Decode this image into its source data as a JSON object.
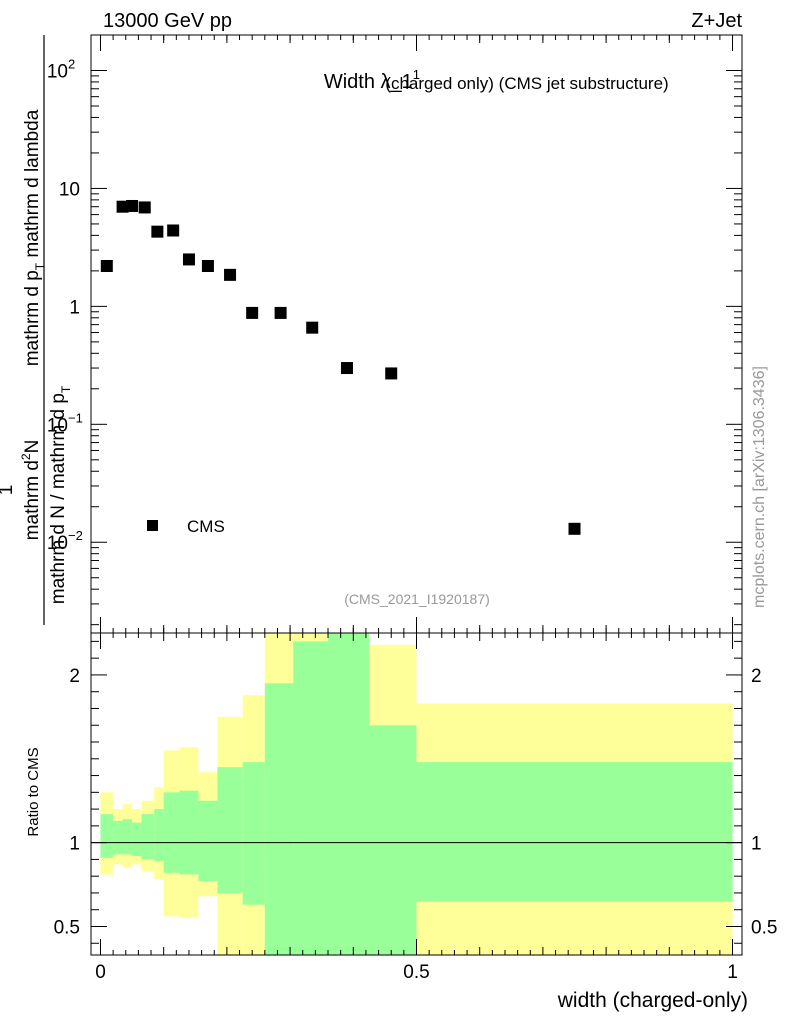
{
  "header": {
    "energy_label": "13000 GeV pp",
    "process_label": "Z+Jet",
    "watermark": "mcplots.cern.ch [arXiv:1306.3436]",
    "analysis_id": "(CMS_2021_I1920187)"
  },
  "colors": {
    "band_outer": "#ffff99",
    "band_inner": "#99ff99",
    "marker": "#000000"
  },
  "chart_data": [
    {
      "type": "scatter",
      "title": "Width λ_1¹ (charged only) (CMS jet substructure)",
      "title_main": "Width λ_1",
      "title_sup": "1",
      "title_rest": "(charged only) (CMS jet substructure)",
      "yscale": "log",
      "xlim": [
        -0.015,
        1.015
      ],
      "ylim": [
        0.0017,
        200
      ],
      "ylabel": {
        "line1": "1",
        "line2a": "mathrm d N / mathrm d p",
        "line2sub": "T",
        "line2b": "mathrm d p",
        "line2sub2": "T",
        "line2c": "mathrm d lambda",
        "numer": "mathrm d",
        "numer_sup": "2",
        "numer_n": "N"
      },
      "y_ticks": [
        {
          "value": 0.01,
          "base": "10",
          "exp": "−2"
        },
        {
          "value": 0.1,
          "base": "10",
          "exp": "−1"
        },
        {
          "value": 1,
          "base": "1",
          "exp": ""
        },
        {
          "value": 10,
          "base": "10",
          "exp": ""
        },
        {
          "value": 100,
          "base": "10",
          "exp": "2"
        }
      ],
      "legend": {
        "position": "bottom-left",
        "label": "CMS"
      },
      "series": [
        {
          "name": "CMS",
          "x": [
            0.01,
            0.035,
            0.05,
            0.07,
            0.09,
            0.115,
            0.14,
            0.17,
            0.205,
            0.24,
            0.285,
            0.335,
            0.39,
            0.46,
            0.75
          ],
          "y": [
            2.2,
            7.0,
            7.1,
            6.9,
            4.3,
            4.4,
            2.5,
            2.2,
            1.85,
            0.88,
            0.88,
            0.66,
            0.3,
            0.27,
            0.013
          ]
        }
      ]
    },
    {
      "type": "area",
      "ylabel": "Ratio to CMS",
      "xlabel": "width (charged-only)",
      "xlim": [
        -0.015,
        1.015
      ],
      "ylim": [
        0.33,
        2.25
      ],
      "x_ticks": [
        {
          "value": 0,
          "label": "0"
        },
        {
          "value": 0.5,
          "label": "0.5"
        },
        {
          "value": 1,
          "label": "1"
        }
      ],
      "y_ticks": [
        {
          "value": 0.5,
          "label": "0.5"
        },
        {
          "value": 1,
          "label": "1"
        },
        {
          "value": 2,
          "label": "2"
        }
      ],
      "reference_line": 1,
      "bins": [
        {
          "x0": 0.0,
          "x1": 0.02,
          "inner": [
            0.91,
            1.17
          ],
          "outer": [
            0.81,
            1.3
          ]
        },
        {
          "x0": 0.02,
          "x1": 0.035,
          "inner": [
            0.93,
            1.13
          ],
          "outer": [
            0.87,
            1.2
          ]
        },
        {
          "x0": 0.035,
          "x1": 0.05,
          "inner": [
            0.93,
            1.14
          ],
          "outer": [
            0.85,
            1.23
          ]
        },
        {
          "x0": 0.05,
          "x1": 0.065,
          "inner": [
            0.92,
            1.12
          ],
          "outer": [
            0.87,
            1.2
          ]
        },
        {
          "x0": 0.065,
          "x1": 0.085,
          "inner": [
            0.9,
            1.17
          ],
          "outer": [
            0.83,
            1.25
          ]
        },
        {
          "x0": 0.085,
          "x1": 0.1,
          "inner": [
            0.89,
            1.2
          ],
          "outer": [
            0.78,
            1.33
          ]
        },
        {
          "x0": 0.1,
          "x1": 0.125,
          "inner": [
            0.82,
            1.3
          ],
          "outer": [
            0.56,
            1.55
          ]
        },
        {
          "x0": 0.125,
          "x1": 0.155,
          "inner": [
            0.81,
            1.31
          ],
          "outer": [
            0.55,
            1.57
          ]
        },
        {
          "x0": 0.155,
          "x1": 0.185,
          "inner": [
            0.77,
            1.25
          ],
          "outer": [
            0.68,
            1.42
          ]
        },
        {
          "x0": 0.185,
          "x1": 0.225,
          "inner": [
            0.7,
            1.45
          ],
          "outer": [
            0.33,
            1.75
          ]
        },
        {
          "x0": 0.225,
          "x1": 0.26,
          "inner": [
            0.63,
            1.48
          ],
          "outer": [
            0.33,
            1.88
          ]
        },
        {
          "x0": 0.26,
          "x1": 0.305,
          "inner": [
            0.33,
            1.95
          ],
          "outer": [
            0.33,
            2.25
          ]
        },
        {
          "x0": 0.305,
          "x1": 0.36,
          "inner": [
            0.33,
            2.2
          ],
          "outer": [
            0.33,
            2.25
          ]
        },
        {
          "x0": 0.36,
          "x1": 0.425,
          "inner": [
            0.33,
            2.25
          ],
          "outer": [
            0.33,
            2.25
          ]
        },
        {
          "x0": 0.425,
          "x1": 0.5,
          "inner": [
            0.33,
            1.7
          ],
          "outer": [
            0.33,
            2.18
          ]
        },
        {
          "x0": 0.5,
          "x1": 1.0,
          "inner": [
            0.65,
            1.48
          ],
          "outer": [
            0.33,
            1.83
          ]
        }
      ]
    }
  ]
}
